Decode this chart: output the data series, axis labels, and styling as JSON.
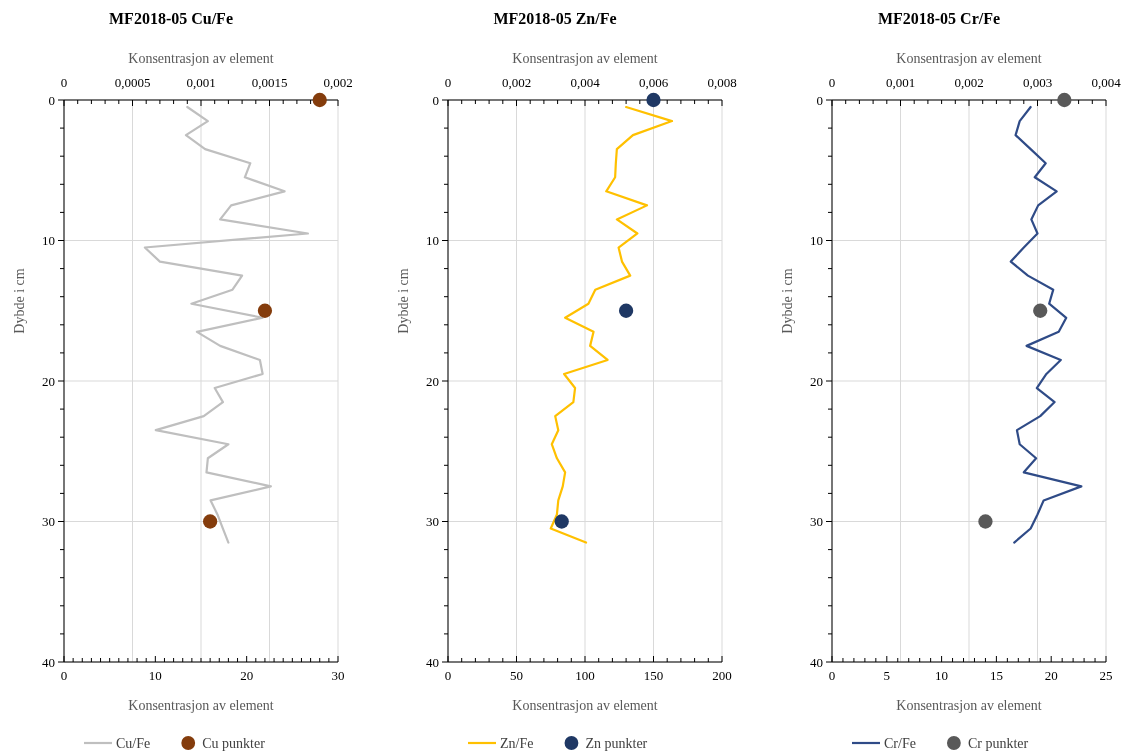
{
  "chart_data": [
    {
      "type": "line",
      "title": "MF2018-05 Cu/Fe",
      "xlabel": "Konsentrasjon av element",
      "x2label": "Konsentrasjon av element",
      "ylabel": "Dybde i cm",
      "grid": true,
      "legend": "bottom",
      "xlim": [
        0,
        30
      ],
      "xticks": [
        0,
        {
          "value": 1,
          "label": null
        },
        {
          "value": 2,
          "label": null
        },
        {
          "value": 3,
          "label": null
        },
        {
          "value": 4,
          "label": null
        },
        {
          "value": 5,
          "label": null
        },
        {
          "value": 6,
          "label": null
        },
        {
          "value": 7,
          "label": null
        },
        {
          "value": 8,
          "label": null
        },
        {
          "value": 9,
          "label": null
        },
        10,
        {
          "value": 11,
          "label": null
        },
        {
          "value": 12,
          "label": null
        },
        {
          "value": 13,
          "label": null
        },
        {
          "value": 14,
          "label": null
        },
        {
          "value": 15,
          "label": null
        },
        {
          "value": 16,
          "label": null
        },
        {
          "value": 17,
          "label": null
        },
        {
          "value": 18,
          "label": null
        },
        {
          "value": 19,
          "label": null
        },
        20,
        {
          "value": 21,
          "label": null
        },
        {
          "value": 22,
          "label": null
        },
        {
          "value": 23,
          "label": null
        },
        {
          "value": 24,
          "label": null
        },
        {
          "value": 25,
          "label": null
        },
        {
          "value": 26,
          "label": null
        },
        {
          "value": 27,
          "label": null
        },
        {
          "value": 28,
          "label": null
        },
        {
          "value": 29,
          "label": null
        },
        30
      ],
      "x2lim": [
        0,
        0.002
      ],
      "x2ticks": [
        {
          "value": 0,
          "label": "0"
        },
        {
          "value": 0.0001,
          "label": null
        },
        {
          "value": 0.0002,
          "label": null
        },
        {
          "value": 0.0003,
          "label": null
        },
        {
          "value": 0.0004,
          "label": null
        },
        {
          "value": 0.0005,
          "label": "0,0005"
        },
        {
          "value": 0.0006,
          "label": null
        },
        {
          "value": 0.0007,
          "label": null
        },
        {
          "value": 0.0008,
          "label": null
        },
        {
          "value": 0.0009,
          "label": null
        },
        {
          "value": 0.001,
          "label": "0,001"
        },
        {
          "value": 0.0011,
          "label": null
        },
        {
          "value": 0.0012,
          "label": null
        },
        {
          "value": 0.0013,
          "label": null
        },
        {
          "value": 0.0014,
          "label": null
        },
        {
          "value": 0.0015,
          "label": "0,0015"
        },
        {
          "value": 0.0016,
          "label": null
        },
        {
          "value": 0.0017,
          "label": null
        },
        {
          "value": 0.0018,
          "label": null
        },
        {
          "value": 0.0019,
          "label": null
        },
        {
          "value": 0.002,
          "label": "0,002"
        }
      ],
      "ylim": [
        40,
        0
      ],
      "yticks": [
        0,
        {
          "value": 2,
          "label": null
        },
        {
          "value": 4,
          "label": null
        },
        {
          "value": 6,
          "label": null
        },
        {
          "value": 8,
          "label": null
        },
        10,
        {
          "value": 12,
          "label": null
        },
        {
          "value": 14,
          "label": null
        },
        {
          "value": 16,
          "label": null
        },
        {
          "value": 18,
          "label": null
        },
        20,
        {
          "value": 22,
          "label": null
        },
        {
          "value": 24,
          "label": null
        },
        {
          "value": 26,
          "label": null
        },
        {
          "value": 28,
          "label": null
        },
        30,
        {
          "value": 32,
          "label": null
        },
        {
          "value": 34,
          "label": null
        },
        {
          "value": 36,
          "label": null
        },
        {
          "value": 38,
          "label": null
        },
        40
      ],
      "series": [
        {
          "name": "Cu/Fe",
          "axis": "x2",
          "color": "#bfbfbf",
          "x": [
            0.0009,
            0.00105,
            0.00089,
            0.00103,
            0.00136,
            0.00132,
            0.00161,
            0.00122,
            0.00114,
            0.00178,
            0.00059,
            0.0007,
            0.0013,
            0.00123,
            0.00093,
            0.00145,
            0.00097,
            0.00114,
            0.00143,
            0.00145,
            0.0011,
            0.00116,
            0.00102,
            0.00067,
            0.0012,
            0.00105,
            0.00104,
            0.00151,
            0.00107,
            0.00112,
            0.00116,
            0.0012
          ],
          "values": [
            0.5,
            1.5,
            2.5,
            3.5,
            4.5,
            5.5,
            6.5,
            7.5,
            8.5,
            9.5,
            10.5,
            11.5,
            12.5,
            13.5,
            14.5,
            15.5,
            16.5,
            17.5,
            18.5,
            19.5,
            20.5,
            21.5,
            22.5,
            23.5,
            24.5,
            25.5,
            26.5,
            27.5,
            28.5,
            29.5,
            30.5,
            31.5
          ]
        },
        {
          "name": "Cu punkter",
          "type": "scatter",
          "marker": "circle",
          "color": "#843c0c",
          "x": [
            28,
            22,
            16
          ],
          "values": [
            0,
            15,
            30
          ]
        }
      ]
    },
    {
      "type": "line",
      "title": "MF2018-05 Zn/Fe",
      "xlabel": "Konsentrasjon av element",
      "x2label": "Konsentrasjon av element",
      "ylabel": "Dybde i cm",
      "grid": true,
      "legend": "bottom",
      "xlim": [
        0,
        200
      ],
      "xticks": [
        0,
        {
          "value": 10,
          "label": null
        },
        {
          "value": 20,
          "label": null
        },
        {
          "value": 30,
          "label": null
        },
        {
          "value": 40,
          "label": null
        },
        50,
        {
          "value": 60,
          "label": null
        },
        {
          "value": 70,
          "label": null
        },
        {
          "value": 80,
          "label": null
        },
        {
          "value": 90,
          "label": null
        },
        100,
        {
          "value": 110,
          "label": null
        },
        {
          "value": 120,
          "label": null
        },
        {
          "value": 130,
          "label": null
        },
        {
          "value": 140,
          "label": null
        },
        150,
        {
          "value": 160,
          "label": null
        },
        {
          "value": 170,
          "label": null
        },
        {
          "value": 180,
          "label": null
        },
        {
          "value": 190,
          "label": null
        },
        200
      ],
      "x2lim": [
        0,
        0.008
      ],
      "x2ticks": [
        {
          "value": 0,
          "label": "0"
        },
        {
          "value": 0.0004,
          "label": null
        },
        {
          "value": 0.0008,
          "label": null
        },
        {
          "value": 0.0012,
          "label": null
        },
        {
          "value": 0.0016,
          "label": null
        },
        {
          "value": 0.002,
          "label": "0,002"
        },
        {
          "value": 0.0024,
          "label": null
        },
        {
          "value": 0.0028,
          "label": null
        },
        {
          "value": 0.0032,
          "label": null
        },
        {
          "value": 0.0036,
          "label": null
        },
        {
          "value": 0.004,
          "label": "0,004"
        },
        {
          "value": 0.0044,
          "label": null
        },
        {
          "value": 0.0048,
          "label": null
        },
        {
          "value": 0.0052,
          "label": null
        },
        {
          "value": 0.0056,
          "label": null
        },
        {
          "value": 0.006,
          "label": "0,006"
        },
        {
          "value": 0.0064,
          "label": null
        },
        {
          "value": 0.0068,
          "label": null
        },
        {
          "value": 0.0072,
          "label": null
        },
        {
          "value": 0.0076,
          "label": null
        },
        {
          "value": 0.008,
          "label": "0,008"
        }
      ],
      "ylim": [
        40,
        0
      ],
      "yticks": [
        0,
        {
          "value": 2,
          "label": null
        },
        {
          "value": 4,
          "label": null
        },
        {
          "value": 6,
          "label": null
        },
        {
          "value": 8,
          "label": null
        },
        10,
        {
          "value": 12,
          "label": null
        },
        {
          "value": 14,
          "label": null
        },
        {
          "value": 16,
          "label": null
        },
        {
          "value": 18,
          "label": null
        },
        20,
        {
          "value": 22,
          "label": null
        },
        {
          "value": 24,
          "label": null
        },
        {
          "value": 26,
          "label": null
        },
        {
          "value": 28,
          "label": null
        },
        30,
        {
          "value": 32,
          "label": null
        },
        {
          "value": 34,
          "label": null
        },
        {
          "value": 36,
          "label": null
        },
        {
          "value": 38,
          "label": null
        },
        40
      ],
      "series": [
        {
          "name": "Zn/Fe",
          "axis": "x2",
          "color": "#ffc000",
          "x": [
            0.0052,
            0.00654,
            0.0054,
            0.00493,
            0.0049,
            0.00488,
            0.00462,
            0.00581,
            0.00493,
            0.00553,
            0.00498,
            0.00508,
            0.00532,
            0.0043,
            0.0041,
            0.00342,
            0.00425,
            0.00415,
            0.00466,
            0.00339,
            0.00371,
            0.00366,
            0.00313,
            0.00322,
            0.00303,
            0.00318,
            0.00342,
            0.00335,
            0.00322,
            0.00318,
            0.003,
            0.00403
          ],
          "values": [
            0.5,
            1.5,
            2.5,
            3.5,
            4.5,
            5.5,
            6.5,
            7.5,
            8.5,
            9.5,
            10.5,
            11.5,
            12.5,
            13.5,
            14.5,
            15.5,
            16.5,
            17.5,
            18.5,
            19.5,
            20.5,
            21.5,
            22.5,
            23.5,
            24.5,
            25.5,
            26.5,
            27.5,
            28.5,
            29.5,
            30.5,
            31.5
          ]
        },
        {
          "name": "Zn punkter",
          "type": "scatter",
          "marker": "circle",
          "color": "#1f3864",
          "x": [
            150,
            130,
            83
          ],
          "values": [
            0,
            15,
            30
          ]
        }
      ]
    },
    {
      "type": "line",
      "title": "MF2018-05 Cr/Fe",
      "xlabel": "Konsentrasjon av element",
      "x2label": "Konsentrasjon av element",
      "ylabel": "Dybde i cm",
      "grid": true,
      "legend": "bottom",
      "xlim": [
        0,
        25
      ],
      "xticks": [
        0,
        {
          "value": 1,
          "label": null
        },
        {
          "value": 2,
          "label": null
        },
        {
          "value": 3,
          "label": null
        },
        {
          "value": 4,
          "label": null
        },
        5,
        {
          "value": 6,
          "label": null
        },
        {
          "value": 7,
          "label": null
        },
        {
          "value": 8,
          "label": null
        },
        {
          "value": 9,
          "label": null
        },
        10,
        {
          "value": 11,
          "label": null
        },
        {
          "value": 12,
          "label": null
        },
        {
          "value": 13,
          "label": null
        },
        {
          "value": 14,
          "label": null
        },
        15,
        {
          "value": 16,
          "label": null
        },
        {
          "value": 17,
          "label": null
        },
        {
          "value": 18,
          "label": null
        },
        {
          "value": 19,
          "label": null
        },
        20,
        {
          "value": 21,
          "label": null
        },
        {
          "value": 22,
          "label": null
        },
        {
          "value": 23,
          "label": null
        },
        {
          "value": 24,
          "label": null
        },
        25
      ],
      "x2lim": [
        0,
        0.004
      ],
      "x2ticks": [
        {
          "value": 0,
          "label": "0"
        },
        {
          "value": 0.0002,
          "label": null
        },
        {
          "value": 0.0004,
          "label": null
        },
        {
          "value": 0.0006,
          "label": null
        },
        {
          "value": 0.0008,
          "label": null
        },
        {
          "value": 0.001,
          "label": "0,001"
        },
        {
          "value": 0.0012,
          "label": null
        },
        {
          "value": 0.0014,
          "label": null
        },
        {
          "value": 0.0016,
          "label": null
        },
        {
          "value": 0.0018,
          "label": null
        },
        {
          "value": 0.002,
          "label": "0,002"
        },
        {
          "value": 0.0022,
          "label": null
        },
        {
          "value": 0.0024,
          "label": null
        },
        {
          "value": 0.0026,
          "label": null
        },
        {
          "value": 0.0028,
          "label": null
        },
        {
          "value": 0.003,
          "label": "0,003"
        },
        {
          "value": 0.0032,
          "label": null
        },
        {
          "value": 0.0034,
          "label": null
        },
        {
          "value": 0.0036,
          "label": null
        },
        {
          "value": 0.0038,
          "label": null
        },
        {
          "value": 0.004,
          "label": "0,004"
        }
      ],
      "ylim": [
        40,
        0
      ],
      "yticks": [
        0,
        {
          "value": 2,
          "label": null
        },
        {
          "value": 4,
          "label": null
        },
        {
          "value": 6,
          "label": null
        },
        {
          "value": 8,
          "label": null
        },
        10,
        {
          "value": 12,
          "label": null
        },
        {
          "value": 14,
          "label": null
        },
        {
          "value": 16,
          "label": null
        },
        {
          "value": 18,
          "label": null
        },
        20,
        {
          "value": 22,
          "label": null
        },
        {
          "value": 24,
          "label": null
        },
        {
          "value": 26,
          "label": null
        },
        {
          "value": 28,
          "label": null
        },
        30,
        {
          "value": 32,
          "label": null
        },
        {
          "value": 34,
          "label": null
        },
        {
          "value": 36,
          "label": null
        },
        {
          "value": 38,
          "label": null
        },
        40
      ],
      "series": [
        {
          "name": "Cr/Fe",
          "axis": "x2",
          "color": "#2f4b87",
          "x": [
            0.0029,
            0.00274,
            0.00268,
            0.0029,
            0.00312,
            0.00296,
            0.00328,
            0.00301,
            0.00291,
            0.003,
            0.0028,
            0.00261,
            0.00286,
            0.00323,
            0.00317,
            0.00342,
            0.00331,
            0.00284,
            0.00334,
            0.00313,
            0.00299,
            0.00325,
            0.00304,
            0.0027,
            0.00274,
            0.00298,
            0.0028,
            0.00364,
            0.00309,
            0.003,
            0.0029,
            0.00266
          ],
          "values": [
            0.5,
            1.5,
            2.5,
            3.5,
            4.5,
            5.5,
            6.5,
            7.5,
            8.5,
            9.5,
            10.5,
            11.5,
            12.5,
            13.5,
            14.5,
            15.5,
            16.5,
            17.5,
            18.5,
            19.5,
            20.5,
            21.5,
            22.5,
            23.5,
            24.5,
            25.5,
            26.5,
            27.5,
            28.5,
            29.5,
            30.5,
            31.5
          ]
        },
        {
          "name": "Cr punkter",
          "type": "scatter",
          "marker": "circle",
          "color": "#595959",
          "x": [
            21.2,
            19,
            14
          ],
          "values": [
            0,
            15,
            30
          ]
        }
      ]
    }
  ]
}
